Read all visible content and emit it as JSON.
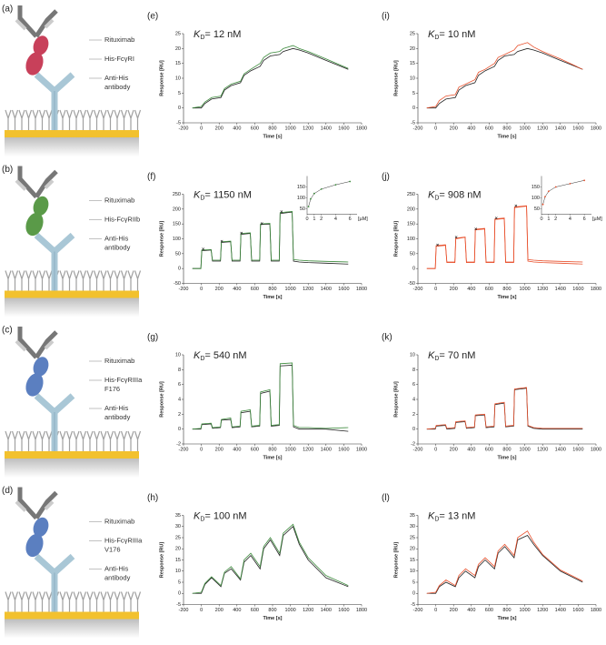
{
  "schematics": [
    {
      "panel": "(a)",
      "color": "#c8405a",
      "labels": [
        [
          "Rituximab"
        ],
        [
          "His-FcγRI"
        ],
        [
          "Anti-His",
          "antibody"
        ]
      ]
    },
    {
      "panel": "(b)",
      "color": "#5a9a48",
      "labels": [
        [
          "Rituximab"
        ],
        [
          "His-FcγRIIb"
        ],
        [
          "Anti-His",
          "antibody"
        ]
      ]
    },
    {
      "panel": "(c)",
      "color": "#5b7fc0",
      "labels": [
        [
          "Rituximab"
        ],
        [
          "His-FcγRIIIa",
          "F176"
        ],
        [
          "Anti-His",
          "antibody"
        ]
      ]
    },
    {
      "panel": "(d)",
      "color": "#5b7fc0",
      "labels": [
        [
          "Rituximab"
        ],
        [
          "His-FcγRIIIa",
          "V176"
        ],
        [
          "Anti-His",
          "antibody"
        ]
      ]
    }
  ],
  "chart_data": [
    {
      "type": "line",
      "panel": "(e)",
      "annotation": {
        "symbol": "K",
        "subscript": "D",
        "value": "= 12 nM"
      },
      "xlabel": "Time [s]",
      "ylabel": "Response [RU]",
      "xlim": [
        -200,
        1800
      ],
      "xticks": [
        -200,
        0,
        200,
        400,
        600,
        800,
        1000,
        1200,
        1400,
        1600,
        1800
      ],
      "ylim": [
        -5,
        25
      ],
      "yticks": [
        -5,
        0,
        5,
        10,
        15,
        20,
        25
      ],
      "x": [
        -100,
        0,
        40,
        115,
        220,
        260,
        335,
        440,
        480,
        555,
        660,
        700,
        775,
        880,
        920,
        1030,
        1100,
        1200,
        1400,
        1650
      ],
      "series": [
        {
          "color": "#222222",
          "values": [
            0,
            0,
            1.5,
            3,
            3.5,
            6,
            7.5,
            8.5,
            11,
            12.5,
            14,
            16,
            17.5,
            18,
            19,
            20,
            19.5,
            18.5,
            16,
            13
          ]
        },
        {
          "color": "#3d8b3d",
          "values": [
            0,
            0.5,
            2,
            3.5,
            4,
            6.5,
            8,
            9,
            11.5,
            13,
            15,
            17,
            18.5,
            19,
            20,
            21,
            20,
            19,
            16.5,
            13.3
          ]
        }
      ]
    },
    {
      "type": "line",
      "panel": "(f)",
      "annotation": {
        "symbol": "K",
        "subscript": "D",
        "value": "= 1150 nM"
      },
      "xlabel": "Time [s]",
      "ylabel": "Response [RU]",
      "xlim": [
        -200,
        1800
      ],
      "xticks": [
        -200,
        0,
        200,
        400,
        600,
        800,
        1000,
        1200,
        1400,
        1600,
        1800
      ],
      "ylim": [
        -50,
        250
      ],
      "yticks": [
        -50,
        0,
        50,
        100,
        150,
        200,
        250
      ],
      "x": [
        -100,
        -5,
        5,
        110,
        125,
        215,
        225,
        330,
        345,
        435,
        445,
        550,
        565,
        655,
        665,
        770,
        785,
        875,
        885,
        1020,
        1035,
        1100,
        1200,
        1400,
        1650
      ],
      "series": [
        {
          "color": "#222222",
          "values": [
            0,
            0,
            60,
            62,
            25,
            25,
            88,
            90,
            25,
            25,
            115,
            118,
            25,
            25,
            148,
            150,
            25,
            25,
            185,
            190,
            25,
            22,
            20,
            18,
            15
          ]
        },
        {
          "color": "#3d8b3d",
          "values": [
            0,
            0,
            62,
            64,
            28,
            28,
            90,
            92,
            28,
            28,
            118,
            120,
            28,
            28,
            150,
            152,
            28,
            28,
            188,
            192,
            30,
            28,
            26,
            24,
            22
          ]
        }
      ],
      "markers": {
        "x": [
          20,
          230,
          450,
          680,
          900
        ],
        "values": [
          65,
          90,
          118,
          150,
          190
        ]
      },
      "inset": {
        "xlabel": "[µM]",
        "xlim": [
          0,
          7
        ],
        "xticks": [
          0,
          1,
          2,
          4,
          6
        ],
        "ylim": [
          25,
          200
        ],
        "yticks": [
          50,
          100,
          150
        ],
        "x": [
          0.2,
          0.5,
          1,
          2,
          4,
          6
        ],
        "values": [
          60,
          95,
          120,
          140,
          160,
          175
        ]
      }
    },
    {
      "type": "line",
      "panel": "(g)",
      "annotation": {
        "symbol": "K",
        "subscript": "D",
        "value": "= 540 nM"
      },
      "xlabel": "Time [s]",
      "ylabel": "Response [RU]",
      "xlim": [
        -200,
        1800
      ],
      "xticks": [
        -200,
        0,
        200,
        400,
        600,
        800,
        1000,
        1200,
        1400,
        1600,
        1800
      ],
      "ylim": [
        -2,
        10
      ],
      "yticks": [
        -2,
        0,
        2,
        4,
        6,
        8,
        10
      ],
      "x": [
        -100,
        -5,
        5,
        110,
        125,
        215,
        225,
        330,
        345,
        435,
        445,
        550,
        565,
        655,
        665,
        770,
        785,
        875,
        885,
        1020,
        1035,
        1100,
        1200,
        1400,
        1650
      ],
      "series": [
        {
          "color": "#222222",
          "values": [
            0,
            0,
            0.6,
            0.7,
            0.1,
            0.2,
            1.2,
            1.3,
            0.2,
            0.3,
            2.2,
            2.4,
            0.3,
            0.4,
            4.8,
            5.1,
            0.4,
            0.5,
            8.5,
            8.6,
            0.3,
            0,
            0,
            0,
            -0.3
          ]
        },
        {
          "color": "#3d8b3d",
          "values": [
            0,
            0.1,
            0.7,
            0.8,
            0.2,
            0.3,
            1.3,
            1.5,
            0.3,
            0.4,
            2.4,
            2.6,
            0.4,
            0.5,
            5,
            5.3,
            0.5,
            0.6,
            8.8,
            8.9,
            0.5,
            0.2,
            0.2,
            0.1,
            0.2
          ]
        }
      ]
    },
    {
      "type": "line",
      "panel": "(h)",
      "annotation": {
        "symbol": "K",
        "subscript": "D",
        "value": "= 100 nM"
      },
      "xlabel": "Time [s]",
      "ylabel": "Response [RU]",
      "xlim": [
        -200,
        1800
      ],
      "xticks": [
        -200,
        0,
        200,
        400,
        600,
        800,
        1000,
        1200,
        1400,
        1600,
        1800
      ],
      "ylim": [
        -5,
        35
      ],
      "yticks": [
        -5,
        0,
        5,
        10,
        15,
        20,
        25,
        30,
        35
      ],
      "x": [
        -100,
        0,
        40,
        115,
        220,
        260,
        335,
        440,
        480,
        555,
        660,
        700,
        775,
        880,
        920,
        1030,
        1100,
        1200,
        1400,
        1650
      ],
      "series": [
        {
          "color": "#222222",
          "values": [
            0,
            0,
            4,
            7,
            3,
            9,
            11,
            6,
            14,
            17,
            11,
            20,
            24,
            17,
            26,
            30,
            22,
            15,
            7,
            3
          ]
        },
        {
          "color": "#3d8b3d",
          "values": [
            0,
            0.5,
            4.5,
            7.5,
            3.5,
            9.5,
            12,
            6.5,
            15,
            18,
            12,
            21,
            25,
            18,
            27,
            31,
            23,
            16,
            8,
            3.5
          ]
        }
      ]
    },
    {
      "type": "line",
      "panel": "(i)",
      "annotation": {
        "symbol": "K",
        "subscript": "D",
        "value": "= 10 nM"
      },
      "xlabel": "Time [s]",
      "ylabel": "Response [RU]",
      "xlim": [
        -200,
        1800
      ],
      "xticks": [
        -200,
        0,
        200,
        400,
        600,
        800,
        1000,
        1200,
        1400,
        1600,
        1800
      ],
      "ylim": [
        -5,
        25
      ],
      "yticks": [
        -5,
        0,
        5,
        10,
        15,
        20,
        25
      ],
      "x": [
        -100,
        0,
        40,
        115,
        220,
        260,
        335,
        440,
        480,
        555,
        660,
        700,
        775,
        880,
        920,
        1030,
        1100,
        1200,
        1400,
        1650
      ],
      "series": [
        {
          "color": "#222222",
          "values": [
            0,
            0,
            1.5,
            3,
            3.5,
            6,
            7.5,
            8.5,
            11,
            12.5,
            14,
            16,
            17.5,
            18,
            19,
            20,
            19.5,
            18.5,
            16,
            13
          ]
        },
        {
          "color": "#e8502c",
          "values": [
            0,
            0.5,
            2.5,
            4,
            4.5,
            7,
            8,
            9.5,
            12,
            13,
            15,
            17,
            18,
            19.5,
            21,
            22,
            20.5,
            19,
            16.5,
            13
          ]
        }
      ]
    },
    {
      "type": "line",
      "panel": "(j)",
      "annotation": {
        "symbol": "K",
        "subscript": "D",
        "value": "= 908 nM"
      },
      "xlabel": "Time [s]",
      "ylabel": "Response [RU]",
      "xlim": [
        -200,
        1800
      ],
      "xticks": [
        -200,
        0,
        200,
        400,
        600,
        800,
        1000,
        1200,
        1400,
        1600,
        1800
      ],
      "ylim": [
        -50,
        250
      ],
      "yticks": [
        -50,
        0,
        50,
        100,
        150,
        200,
        250
      ],
      "x": [
        -100,
        -5,
        5,
        110,
        125,
        215,
        225,
        330,
        345,
        435,
        445,
        550,
        565,
        655,
        665,
        770,
        785,
        875,
        885,
        1020,
        1035,
        1100,
        1200,
        1400,
        1650
      ],
      "series": [
        {
          "color": "#e8502c",
          "values": [
            0,
            0,
            75,
            78,
            20,
            20,
            100,
            105,
            20,
            20,
            130,
            133,
            20,
            20,
            165,
            168,
            20,
            20,
            205,
            210,
            25,
            22,
            20,
            18,
            15
          ]
        },
        {
          "color": "#e8502c",
          "values": [
            0,
            0,
            77,
            80,
            22,
            22,
            102,
            106,
            22,
            22,
            132,
            135,
            22,
            22,
            167,
            170,
            22,
            22,
            207,
            211,
            30,
            28,
            26,
            24,
            22
          ]
        }
      ],
      "markers": {
        "x": [
          20,
          230,
          450,
          680,
          900
        ],
        "values": [
          78,
          105,
          132,
          168,
          210
        ]
      },
      "inset": {
        "xlabel": "[µM]",
        "xlim": [
          0,
          7
        ],
        "xticks": [
          0,
          1,
          2,
          4,
          6
        ],
        "ylim": [
          25,
          200
        ],
        "yticks": [
          50,
          100,
          150
        ],
        "x": [
          0.2,
          0.5,
          1,
          2,
          4,
          6
        ],
        "values": [
          70,
          105,
          130,
          150,
          165,
          180
        ]
      }
    },
    {
      "type": "line",
      "panel": "(k)",
      "annotation": {
        "symbol": "K",
        "subscript": "D",
        "value": "= 70 nM"
      },
      "xlabel": "Time [s]",
      "ylabel": "Response [RU]",
      "xlim": [
        -200,
        1800
      ],
      "xticks": [
        -200,
        0,
        200,
        400,
        600,
        800,
        1000,
        1200,
        1400,
        1600,
        1800
      ],
      "ylim": [
        -2,
        10
      ],
      "yticks": [
        -2,
        0,
        2,
        4,
        6,
        8,
        10
      ],
      "x": [
        -100,
        -5,
        5,
        110,
        125,
        215,
        225,
        330,
        345,
        435,
        445,
        550,
        565,
        655,
        665,
        770,
        785,
        875,
        885,
        1020,
        1035,
        1100,
        1200,
        1400,
        1650
      ],
      "series": [
        {
          "color": "#222222",
          "values": [
            0,
            0,
            0.4,
            0.5,
            0,
            0.1,
            0.9,
            1,
            0.1,
            0.2,
            1.8,
            1.9,
            0.2,
            0.3,
            3.3,
            3.5,
            0.3,
            0.4,
            5.3,
            5.5,
            0.4,
            0.1,
            0,
            0,
            0
          ]
        },
        {
          "color": "#e8502c",
          "values": [
            0,
            0.1,
            0.5,
            0.6,
            0.1,
            0.2,
            1,
            1.1,
            0.2,
            0.3,
            1.9,
            2,
            0.3,
            0.4,
            3.4,
            3.6,
            0.4,
            0.5,
            5.4,
            5.6,
            0.5,
            0.2,
            0.1,
            0.1,
            0.1
          ]
        }
      ]
    },
    {
      "type": "line",
      "panel": "(l)",
      "annotation": {
        "symbol": "K",
        "subscript": "D",
        "value": "= 13 nM"
      },
      "xlabel": "Time [s]",
      "ylabel": "Response [RU]",
      "xlim": [
        -200,
        1800
      ],
      "xticks": [
        -200,
        0,
        200,
        400,
        600,
        800,
        1000,
        1200,
        1400,
        1600,
        1800
      ],
      "ylim": [
        -5,
        35
      ],
      "yticks": [
        -5,
        0,
        5,
        10,
        15,
        20,
        25,
        30,
        35
      ],
      "x": [
        -100,
        0,
        40,
        115,
        220,
        260,
        335,
        440,
        480,
        555,
        660,
        700,
        775,
        880,
        920,
        1030,
        1100,
        1200,
        1400,
        1650
      ],
      "series": [
        {
          "color": "#222222",
          "values": [
            0,
            0,
            3,
            5,
            3,
            7,
            10,
            7,
            12,
            15,
            11,
            18,
            21,
            16,
            24,
            26,
            22,
            17,
            10,
            5
          ]
        },
        {
          "color": "#e8502c",
          "values": [
            0,
            0.5,
            3.5,
            6,
            3.5,
            8,
            11,
            8,
            13,
            16,
            12,
            19,
            22,
            17,
            25,
            28,
            23,
            17.5,
            10.5,
            5.5
          ]
        }
      ]
    }
  ]
}
